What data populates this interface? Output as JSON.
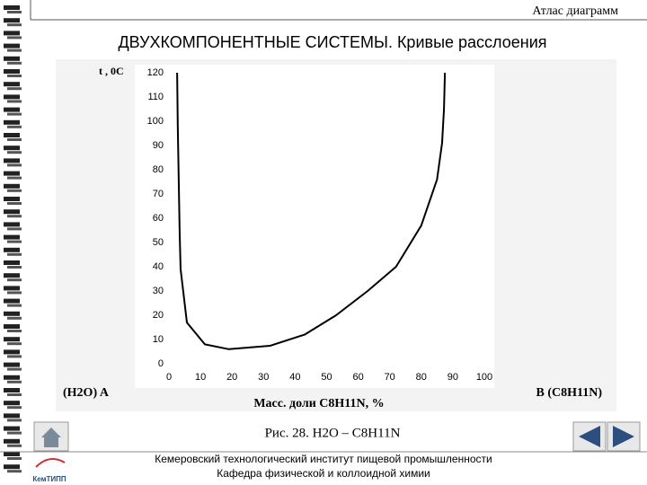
{
  "header": {
    "atlas": "Атлас диаграмм",
    "title": "ДВУХКОМПОНЕНТНЫЕ СИСТЕМЫ. Кривые расслоения"
  },
  "chart_data": {
    "type": "line",
    "y_label": "t , 0C",
    "x_label": "Масс. доли C8H11N, %",
    "left_component": "(H2O) A",
    "right_component": "B (C8H11N)",
    "x": [
      2.6,
      2.8,
      3.4,
      3.7,
      5.7,
      11.4,
      19,
      32,
      43,
      53,
      63,
      72,
      80,
      85,
      86.6,
      87.2,
      87.5
    ],
    "series": [
      {
        "color": "#000000",
        "values": [
          120,
          98,
          54,
          39,
          17,
          8,
          6,
          7.4,
          12,
          20,
          30,
          40,
          57,
          76,
          91,
          105,
          120
        ]
      }
    ],
    "xlim": [
      0,
      100
    ],
    "ylim": [
      0,
      120
    ],
    "xticks": [
      0,
      10,
      20,
      30,
      40,
      50,
      60,
      70,
      80,
      90,
      100
    ],
    "yticks": [
      0,
      10,
      20,
      30,
      40,
      50,
      60,
      70,
      80,
      90,
      100,
      110,
      120
    ],
    "grid": false
  },
  "caption": "Рис. 28. H2O – C8H11N",
  "footer": {
    "line1": "Кемеровский технологический институт пищевой промышленности",
    "line2": "Кафедра физической и коллоидной химии",
    "logo": "КемТИПП"
  }
}
